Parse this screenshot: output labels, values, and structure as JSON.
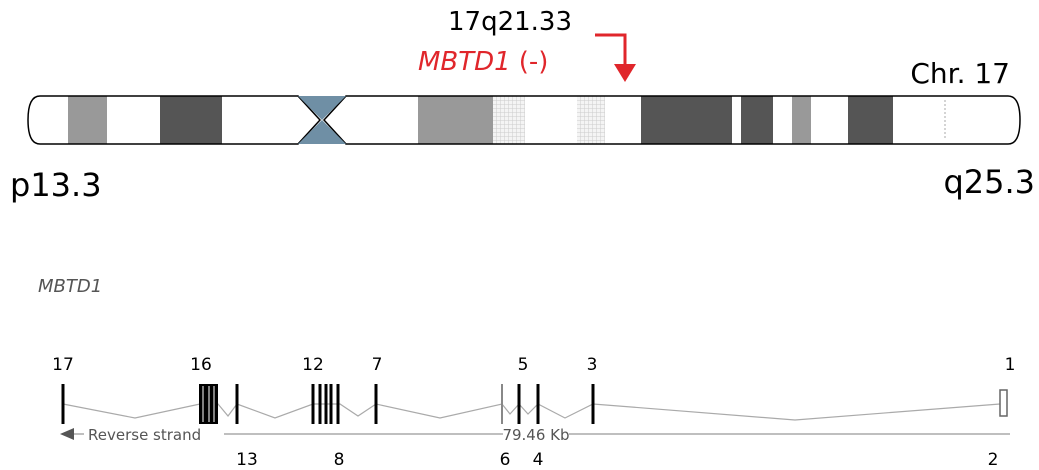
{
  "ideogram": {
    "band_label": "17q21.33",
    "gene": "MBTD1",
    "strand": "(-)",
    "chromosome": "Chr. 17",
    "p_end": "p13.3",
    "q_end": "q25.3"
  },
  "gene_track": {
    "title": "MBTD1",
    "exons_top": [
      "17",
      "16",
      "12",
      "7",
      "5",
      "3",
      "1"
    ],
    "exons_bottom": [
      "13",
      "8",
      "6",
      "4",
      "2"
    ],
    "strand_label": "Reverse strand",
    "length": "79.46 Kb"
  }
}
